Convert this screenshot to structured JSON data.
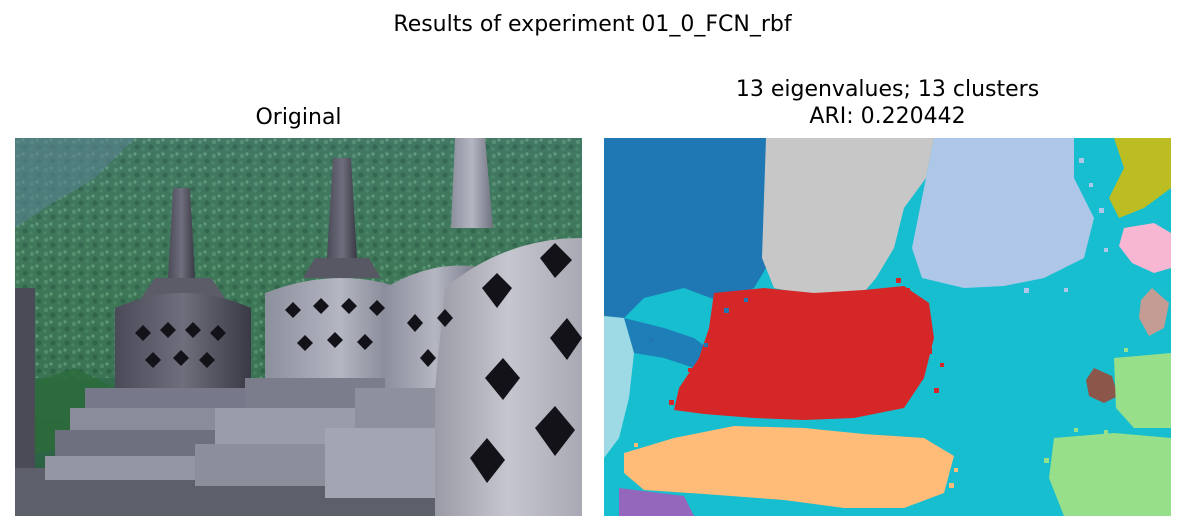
{
  "figure": {
    "suptitle": "Results of experiment 01_0_FCN_rbf"
  },
  "left_panel": {
    "title": "Original"
  },
  "right_panel": {
    "title_line1": "13 eigenvalues; 13 clusters",
    "title_line2": "ARI: 0.220442"
  },
  "colors": {
    "cluster_palette": [
      "#1f77b4",
      "#aec7e8",
      "#ffbb78",
      "#d62728",
      "#9467bd",
      "#8c564b",
      "#c49c94",
      "#f7b6d2",
      "#c7c7c7",
      "#bcbd22",
      "#17becf",
      "#9edae5",
      "#98df8a"
    ]
  }
}
